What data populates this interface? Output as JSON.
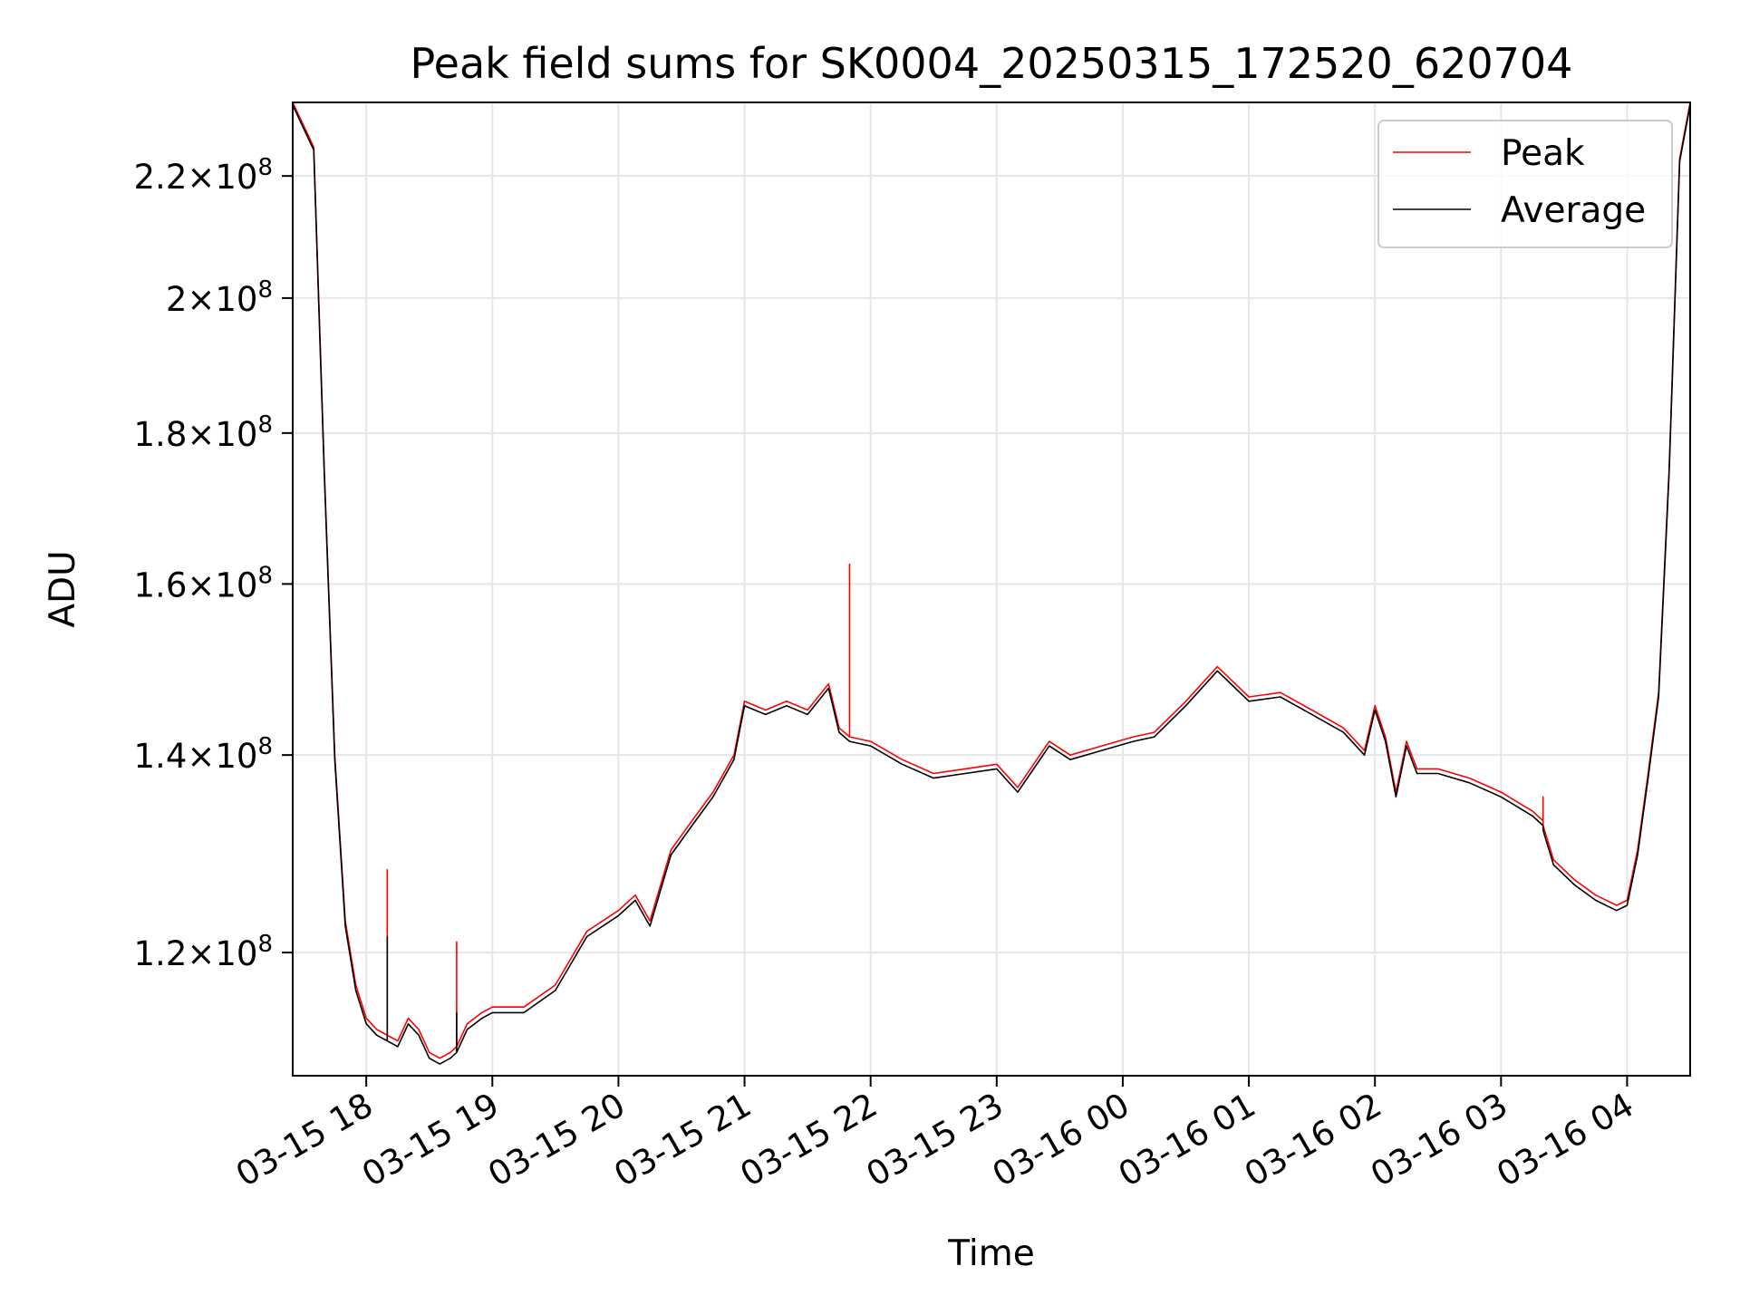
{
  "chart_data": {
    "type": "line",
    "title": "Peak field sums for SK0004_20250315_172520_620704",
    "xlabel": "Time",
    "ylabel": "ADU",
    "yscale": "log",
    "grid": true,
    "legend_position": "top-right",
    "xlim": [
      "2025-03-15 17:25",
      "2025-03-16 04:30"
    ],
    "ylim": [
      109000000,
      233000000
    ],
    "x_ticks": [
      {
        "value": "2025-03-15 18:00",
        "label": "03-15 18"
      },
      {
        "value": "2025-03-15 19:00",
        "label": "03-15 19"
      },
      {
        "value": "2025-03-15 20:00",
        "label": "03-15 20"
      },
      {
        "value": "2025-03-15 21:00",
        "label": "03-15 21"
      },
      {
        "value": "2025-03-15 22:00",
        "label": "03-15 22"
      },
      {
        "value": "2025-03-15 23:00",
        "label": "03-15 23"
      },
      {
        "value": "2025-03-16 00:00",
        "label": "03-16 00"
      },
      {
        "value": "2025-03-16 01:00",
        "label": "03-16 01"
      },
      {
        "value": "2025-03-16 02:00",
        "label": "03-16 02"
      },
      {
        "value": "2025-03-16 03:00",
        "label": "03-16 03"
      },
      {
        "value": "2025-03-16 04:00",
        "label": "03-16 04"
      }
    ],
    "y_ticks": [
      {
        "value": 120000000,
        "mantissa": "1.2",
        "exponent": "8"
      },
      {
        "value": 140000000,
        "mantissa": "1.4",
        "exponent": "8"
      },
      {
        "value": 160000000,
        "mantissa": "1.6",
        "exponent": "8"
      },
      {
        "value": 180000000,
        "mantissa": "1.8",
        "exponent": "8"
      },
      {
        "value": 200000000,
        "mantissa": "2",
        "exponent": "8"
      },
      {
        "value": 220000000,
        "mantissa": "2.2",
        "exponent": "8"
      }
    ],
    "series": [
      {
        "name": "Peak",
        "color": "#ff0000",
        "x": [
          "2025-03-15 17:25",
          "2025-03-15 17:35",
          "2025-03-15 17:40",
          "2025-03-15 17:45",
          "2025-03-15 17:50",
          "2025-03-15 17:55",
          "2025-03-15 18:00",
          "2025-03-15 18:05",
          "2025-03-15 18:10",
          "2025-03-15 18:10",
          "2025-03-15 18:10",
          "2025-03-15 18:15",
          "2025-03-15 18:20",
          "2025-03-15 18:25",
          "2025-03-15 18:30",
          "2025-03-15 18:35",
          "2025-03-15 18:40",
          "2025-03-15 18:43",
          "2025-03-15 18:43",
          "2025-03-15 18:43",
          "2025-03-15 18:48",
          "2025-03-15 18:55",
          "2025-03-15 19:00",
          "2025-03-15 19:15",
          "2025-03-15 19:30",
          "2025-03-15 19:45",
          "2025-03-15 20:00",
          "2025-03-15 20:08",
          "2025-03-15 20:15",
          "2025-03-15 20:25",
          "2025-03-15 20:35",
          "2025-03-15 20:45",
          "2025-03-15 20:55",
          "2025-03-15 21:00",
          "2025-03-15 21:10",
          "2025-03-15 21:20",
          "2025-03-15 21:30",
          "2025-03-15 21:40",
          "2025-03-15 21:45",
          "2025-03-15 21:50",
          "2025-03-15 21:50",
          "2025-03-15 21:50",
          "2025-03-15 22:00",
          "2025-03-15 22:15",
          "2025-03-15 22:30",
          "2025-03-15 22:45",
          "2025-03-15 23:00",
          "2025-03-15 23:10",
          "2025-03-15 23:25",
          "2025-03-15 23:35",
          "2025-03-15 23:50",
          "2025-03-16 00:05",
          "2025-03-16 00:15",
          "2025-03-16 00:30",
          "2025-03-16 00:45",
          "2025-03-16 01:00",
          "2025-03-16 01:15",
          "2025-03-16 01:30",
          "2025-03-16 01:45",
          "2025-03-16 01:55",
          "2025-03-16 02:00",
          "2025-03-16 02:05",
          "2025-03-16 02:10",
          "2025-03-16 02:15",
          "2025-03-16 02:20",
          "2025-03-16 02:30",
          "2025-03-16 02:45",
          "2025-03-16 03:00",
          "2025-03-16 03:15",
          "2025-03-16 03:20",
          "2025-03-16 03:20",
          "2025-03-16 03:20",
          "2025-03-16 03:25",
          "2025-03-16 03:35",
          "2025-03-16 03:45",
          "2025-03-16 03:55",
          "2025-03-16 04:00",
          "2025-03-16 04:05",
          "2025-03-16 04:10",
          "2025-03-16 04:15",
          "2025-03-16 04:20",
          "2025-03-16 04:25",
          "2025-03-16 04:30"
        ],
        "values": [
          233000000,
          225000000,
          175000000,
          140000000,
          123000000,
          117000000,
          114000000,
          113000000,
          112500000,
          128000000,
          112500000,
          112000000,
          114000000,
          113000000,
          111000000,
          110500000,
          111000000,
          111500000,
          121000000,
          111500000,
          113500000,
          114500000,
          115000000,
          115000000,
          117000000,
          122000000,
          124000000,
          125500000,
          123000000,
          130000000,
          133000000,
          136000000,
          140000000,
          146000000,
          145000000,
          146000000,
          145000000,
          148000000,
          143000000,
          142000000,
          162500000,
          142000000,
          141500000,
          139500000,
          138000000,
          138500000,
          139000000,
          136500000,
          141500000,
          140000000,
          141000000,
          142000000,
          142500000,
          146000000,
          150000000,
          146500000,
          147000000,
          145000000,
          143000000,
          140500000,
          145500000,
          142000000,
          136000000,
          141500000,
          138500000,
          138500000,
          137500000,
          136000000,
          134000000,
          133000000,
          135500000,
          132500000,
          129000000,
          127000000,
          125500000,
          124500000,
          125000000,
          130000000,
          138000000,
          147000000,
          175000000,
          223000000,
          233000000
        ]
      },
      {
        "name": "Average",
        "color": "#000000",
        "x": [
          "2025-03-15 17:25",
          "2025-03-15 17:35",
          "2025-03-15 17:40",
          "2025-03-15 17:45",
          "2025-03-15 17:50",
          "2025-03-15 17:55",
          "2025-03-15 18:00",
          "2025-03-15 18:05",
          "2025-03-15 18:10",
          "2025-03-15 18:10",
          "2025-03-15 18:10",
          "2025-03-15 18:15",
          "2025-03-15 18:20",
          "2025-03-15 18:25",
          "2025-03-15 18:30",
          "2025-03-15 18:35",
          "2025-03-15 18:40",
          "2025-03-15 18:43",
          "2025-03-15 18:43",
          "2025-03-15 18:43",
          "2025-03-15 18:48",
          "2025-03-15 18:55",
          "2025-03-15 19:00",
          "2025-03-15 19:15",
          "2025-03-15 19:30",
          "2025-03-15 19:45",
          "2025-03-15 20:00",
          "2025-03-15 20:08",
          "2025-03-15 20:15",
          "2025-03-15 20:25",
          "2025-03-15 20:35",
          "2025-03-15 20:45",
          "2025-03-15 20:55",
          "2025-03-15 21:00",
          "2025-03-15 21:10",
          "2025-03-15 21:20",
          "2025-03-15 21:30",
          "2025-03-15 21:40",
          "2025-03-15 21:45",
          "2025-03-15 21:50",
          "2025-03-15 21:50",
          "2025-03-15 21:50",
          "2025-03-15 22:00",
          "2025-03-15 22:15",
          "2025-03-15 22:30",
          "2025-03-15 22:45",
          "2025-03-15 23:00",
          "2025-03-15 23:10",
          "2025-03-15 23:25",
          "2025-03-15 23:35",
          "2025-03-15 23:50",
          "2025-03-16 00:05",
          "2025-03-16 00:15",
          "2025-03-16 00:30",
          "2025-03-16 00:45",
          "2025-03-16 01:00",
          "2025-03-16 01:15",
          "2025-03-16 01:30",
          "2025-03-16 01:45",
          "2025-03-16 01:55",
          "2025-03-16 02:00",
          "2025-03-16 02:05",
          "2025-03-16 02:10",
          "2025-03-16 02:15",
          "2025-03-16 02:20",
          "2025-03-16 02:30",
          "2025-03-16 02:45",
          "2025-03-16 03:00",
          "2025-03-16 03:15",
          "2025-03-16 03:20",
          "2025-03-16 03:20",
          "2025-03-16 03:20",
          "2025-03-16 03:25",
          "2025-03-16 03:35",
          "2025-03-16 03:45",
          "2025-03-16 03:55",
          "2025-03-16 04:00",
          "2025-03-16 04:05",
          "2025-03-16 04:10",
          "2025-03-16 04:15",
          "2025-03-16 04:20",
          "2025-03-16 04:25",
          "2025-03-16 04:30"
        ],
        "values": [
          232500000,
          224500000,
          174500000,
          139500000,
          122500000,
          116500000,
          113500000,
          112500000,
          112000000,
          121500000,
          112000000,
          111500000,
          113500000,
          112500000,
          110500000,
          110000000,
          110500000,
          111000000,
          114500000,
          111000000,
          113000000,
          114000000,
          114500000,
          114500000,
          116500000,
          121500000,
          123500000,
          125000000,
          122500000,
          129500000,
          132500000,
          135500000,
          139500000,
          145500000,
          144500000,
          145500000,
          144500000,
          147500000,
          142500000,
          141500000,
          141500000,
          141500000,
          141000000,
          139000000,
          137500000,
          138000000,
          138500000,
          136000000,
          141000000,
          139500000,
          140500000,
          141500000,
          142000000,
          145500000,
          149500000,
          146000000,
          146500000,
          144500000,
          142500000,
          140000000,
          145000000,
          141500000,
          135500000,
          141000000,
          138000000,
          138000000,
          137000000,
          135500000,
          133500000,
          132500000,
          132500000,
          132000000,
          128500000,
          126500000,
          125000000,
          124000000,
          124500000,
          129500000,
          137500000,
          146500000,
          174500000,
          222500000,
          232500000
        ]
      }
    ]
  }
}
